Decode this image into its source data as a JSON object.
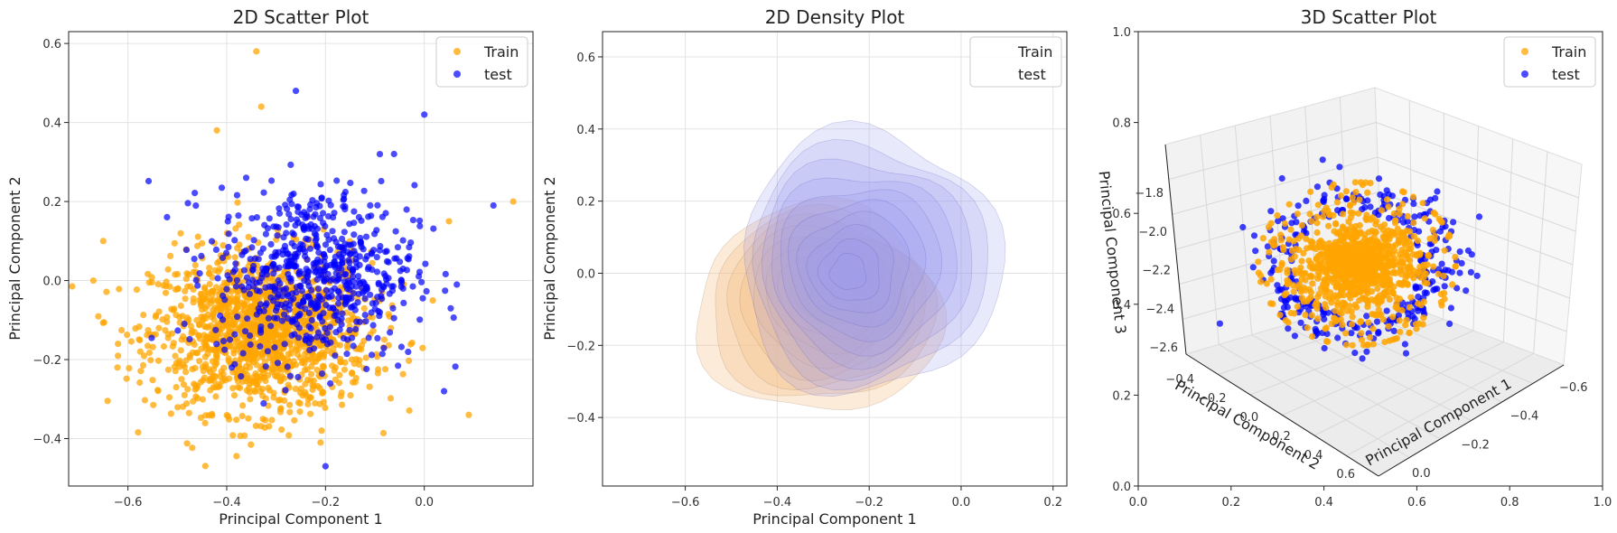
{
  "colors": {
    "train": "#FFA500",
    "test": "#0000FF"
  },
  "panels": {
    "scatter2d": {
      "title": "2D Scatter Plot",
      "xlabel": "Principal Component 1",
      "ylabel": "Principal Component 2"
    },
    "density2d": {
      "title": "2D Density Plot",
      "xlabel": "Principal Component 1",
      "ylabel": "Principal Component 2"
    },
    "scatter3d": {
      "title": "3D Scatter Plot",
      "xlabel": "Principal Component 1",
      "ylabel": "Principal Component 2",
      "zlabel": "Principal Component 3"
    }
  },
  "legend": {
    "train": "Train",
    "test": "test"
  },
  "chart_data": [
    {
      "type": "scatter",
      "title": "2D Scatter Plot",
      "xlabel": "Principal Component 1",
      "ylabel": "Principal Component 2",
      "xlim": [
        -0.72,
        0.22
      ],
      "ylim": [
        -0.52,
        0.63
      ],
      "x_ticks": [
        "−0.6",
        "−0.4",
        "−0.2",
        "0.0"
      ],
      "y_ticks": [
        "−0.4",
        "−0.2",
        "0.0",
        "0.2",
        "0.4",
        "0.6"
      ],
      "grid": true,
      "legend_position": "top-right",
      "series": [
        {
          "name": "Train",
          "color": "#FFA500",
          "center": [
            -0.33,
            -0.13
          ],
          "spread": [
            0.11,
            0.1
          ],
          "n": 1400,
          "outliers": [
            [
              -0.34,
              0.58
            ],
            [
              -0.67,
              0.0
            ],
            [
              -0.65,
              0.1
            ],
            [
              0.18,
              0.2
            ],
            [
              0.09,
              -0.34
            ],
            [
              -0.21,
              -0.41
            ],
            [
              -0.42,
              0.38
            ],
            [
              -0.33,
              0.44
            ],
            [
              0.05,
              0.15
            ],
            [
              -0.62,
              -0.16
            ]
          ]
        },
        {
          "name": "test",
          "color": "#0000FF",
          "center": [
            -0.22,
            0.02
          ],
          "spread": [
            0.1,
            0.11
          ],
          "n": 650,
          "outliers": [
            [
              -0.26,
              0.48
            ],
            [
              -0.2,
              -0.47
            ],
            [
              0.0,
              0.42
            ],
            [
              0.14,
              0.19
            ],
            [
              0.04,
              -0.28
            ],
            [
              -0.09,
              0.32
            ]
          ]
        }
      ]
    },
    {
      "type": "area",
      "subtype": "density",
      "title": "2D Density Plot",
      "xlabel": "Principal Component 1",
      "ylabel": "Principal Component 2",
      "xlim": [
        -0.78,
        0.23
      ],
      "ylim": [
        -0.59,
        0.67
      ],
      "x_ticks": [
        "−0.6",
        "−0.4",
        "−0.2",
        "0.0",
        "0.2"
      ],
      "y_ticks": [
        "−0.4",
        "−0.2",
        "0.0",
        "0.2",
        "0.4",
        "0.6"
      ],
      "grid": true,
      "legend_position": "top-right",
      "series": [
        {
          "name": "Train",
          "color": "#F5C08A",
          "peak": [
            -0.25,
            0.0
          ],
          "levels": 10
        },
        {
          "name": "test",
          "color": "#9A9AF0",
          "peak": [
            -0.25,
            0.0
          ],
          "levels": 10
        }
      ]
    },
    {
      "type": "scatter",
      "subtype": "3d",
      "title": "3D Scatter Plot",
      "xlabel": "Principal Component 1",
      "ylabel": "Principal Component 2",
      "zlabel": "Principal Component 3",
      "x_ticks": [
        "0.0",
        "−0.2",
        "−0.4",
        "−0.6"
      ],
      "y_ticks": [
        "−0.4",
        "−0.2",
        "0.0",
        "0.2",
        "0.4",
        "0.6"
      ],
      "z_ticks": [
        "−1.8",
        "−2.0",
        "−2.2",
        "−2.4",
        "−2.6"
      ],
      "frame_x_ticks": [
        "0.0",
        "0.2",
        "0.4",
        "0.6",
        "0.8",
        "1.0"
      ],
      "frame_y_ticks": [
        "0.0",
        "0.2",
        "0.4",
        "0.6",
        "0.8",
        "1.0"
      ],
      "legend_position": "top-right",
      "series": [
        {
          "name": "Train",
          "color": "#FFA500",
          "n": 1200
        },
        {
          "name": "test",
          "color": "#0000FF",
          "n": 300
        }
      ]
    }
  ]
}
